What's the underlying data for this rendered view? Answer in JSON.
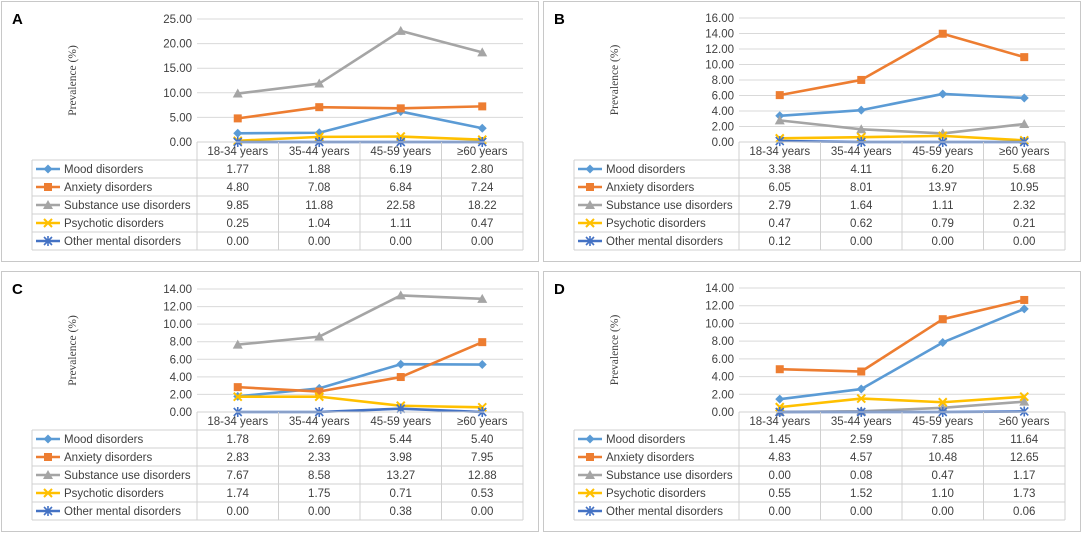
{
  "chart_data": [
    {
      "panel": "A",
      "type": "line",
      "ylabel": "Prevalence (%)",
      "ylim": [
        0,
        25
      ],
      "yticks": [
        "25.00",
        "20.00",
        "15.00",
        "10.00",
        "5.00",
        "0.00"
      ],
      "categories": [
        "18-34 years",
        "35-44  years",
        "45-59 years",
        "≥60 years"
      ],
      "series": [
        {
          "name": "Mood disorders",
          "values": [
            1.77,
            1.88,
            6.19,
            2.8
          ],
          "labels": [
            "1.77",
            "1.88",
            "6.19",
            "2.80"
          ],
          "color": "#5b9bd5",
          "marker": "diamond"
        },
        {
          "name": "Anxiety disorders",
          "values": [
            4.8,
            7.08,
            6.84,
            7.24
          ],
          "labels": [
            "4.80",
            "7.08",
            "6.84",
            "7.24"
          ],
          "color": "#ed7d31",
          "marker": "square"
        },
        {
          "name": "Substance use disorders",
          "values": [
            9.85,
            11.88,
            22.58,
            18.22
          ],
          "labels": [
            "9.85",
            "11.88",
            "22.58",
            "18.22"
          ],
          "color": "#a5a5a5",
          "marker": "triangle"
        },
        {
          "name": "Psychotic disorders",
          "values": [
            0.25,
            1.04,
            1.11,
            0.47
          ],
          "labels": [
            "0.25",
            "1.04",
            "1.11",
            "0.47"
          ],
          "color": "#ffc000",
          "marker": "x"
        },
        {
          "name": "Other mental disorders",
          "values": [
            0.0,
            0.0,
            0.0,
            0.0
          ],
          "labels": [
            "0.00",
            "0.00",
            "0.00",
            "0.00"
          ],
          "color": "#4472c4",
          "marker": "star"
        }
      ]
    },
    {
      "panel": "B",
      "type": "line",
      "ylabel": "Prevalence (%)",
      "ylim": [
        0,
        16
      ],
      "yticks": [
        "16.00",
        "14.00",
        "12.00",
        "10.00",
        "8.00",
        "6.00",
        "4.00",
        "2.00",
        "0.00"
      ],
      "categories": [
        "18-34 years",
        "35-44  years",
        "45-59 years",
        "≥60 years"
      ],
      "series": [
        {
          "name": "Mood disorders",
          "values": [
            3.38,
            4.11,
            6.2,
            5.68
          ],
          "labels": [
            "3.38",
            "4.11",
            "6.20",
            "5.68"
          ],
          "color": "#5b9bd5",
          "marker": "diamond"
        },
        {
          "name": "Anxiety disorders",
          "values": [
            6.05,
            8.01,
            13.97,
            10.95
          ],
          "labels": [
            "6.05",
            "8.01",
            "13.97",
            "10.95"
          ],
          "color": "#ed7d31",
          "marker": "square"
        },
        {
          "name": "Substance use disorders",
          "values": [
            2.79,
            1.64,
            1.11,
            2.32
          ],
          "labels": [
            "2.79",
            "1.64",
            "1.11",
            "2.32"
          ],
          "color": "#a5a5a5",
          "marker": "triangle"
        },
        {
          "name": "Psychotic disorders",
          "values": [
            0.47,
            0.62,
            0.79,
            0.21
          ],
          "labels": [
            "0.47",
            "0.62",
            "0.79",
            "0.21"
          ],
          "color": "#ffc000",
          "marker": "x"
        },
        {
          "name": "Other mental disorders",
          "values": [
            0.12,
            0.0,
            0.0,
            0.0
          ],
          "labels": [
            "0.12",
            "0.00",
            "0.00",
            "0.00"
          ],
          "color": "#4472c4",
          "marker": "star"
        }
      ]
    },
    {
      "panel": "C",
      "type": "line",
      "ylabel": "Prevalence (%)",
      "ylim": [
        0,
        14
      ],
      "yticks": [
        "14.00",
        "12.00",
        "10.00",
        "8.00",
        "6.00",
        "4.00",
        "2.00",
        "0.00"
      ],
      "categories": [
        "18-34 years",
        "35-44  years",
        "45-59 years",
        "≥60 years"
      ],
      "series": [
        {
          "name": "Mood disorders",
          "values": [
            1.78,
            2.69,
            5.44,
            5.4
          ],
          "labels": [
            "1.78",
            "2.69",
            "5.44",
            "5.40"
          ],
          "color": "#5b9bd5",
          "marker": "diamond"
        },
        {
          "name": "Anxiety disorders",
          "values": [
            2.83,
            2.33,
            3.98,
            7.95
          ],
          "labels": [
            "2.83",
            "2.33",
            "3.98",
            "7.95"
          ],
          "color": "#ed7d31",
          "marker": "square"
        },
        {
          "name": "Substance use disorders",
          "values": [
            7.67,
            8.58,
            13.27,
            12.88
          ],
          "labels": [
            "7.67",
            "8.58",
            "13.27",
            "12.88"
          ],
          "color": "#a5a5a5",
          "marker": "triangle"
        },
        {
          "name": "Psychotic disorders",
          "values": [
            1.74,
            1.75,
            0.71,
            0.53
          ],
          "labels": [
            "1.74",
            "1.75",
            "0.71",
            "0.53"
          ],
          "color": "#ffc000",
          "marker": "x"
        },
        {
          "name": "Other mental disorders",
          "values": [
            0.0,
            0.0,
            0.38,
            0.0
          ],
          "labels": [
            "0.00",
            "0.00",
            "0.38",
            "0.00"
          ],
          "color": "#4472c4",
          "marker": "star"
        }
      ]
    },
    {
      "panel": "D",
      "type": "line",
      "ylabel": "Prevalence (%)",
      "ylim": [
        0,
        14
      ],
      "yticks": [
        "14.00",
        "12.00",
        "10.00",
        "8.00",
        "6.00",
        "4.00",
        "2.00",
        "0.00"
      ],
      "categories": [
        "18-34 years",
        "35-44  years",
        "45-59 years",
        "≥60 years"
      ],
      "series": [
        {
          "name": "Mood disorders",
          "values": [
            1.45,
            2.59,
            7.85,
            11.64
          ],
          "labels": [
            "1.45",
            "2.59",
            "7.85",
            "11.64"
          ],
          "color": "#5b9bd5",
          "marker": "diamond"
        },
        {
          "name": "Anxiety disorders",
          "values": [
            4.83,
            4.57,
            10.48,
            12.65
          ],
          "labels": [
            "4.83",
            "4.57",
            "10.48",
            "12.65"
          ],
          "color": "#ed7d31",
          "marker": "square"
        },
        {
          "name": "Substance use disorders",
          "values": [
            0.0,
            0.08,
            0.47,
            1.17
          ],
          "labels": [
            "0.00",
            "0.08",
            "0.47",
            "1.17"
          ],
          "color": "#a5a5a5",
          "marker": "triangle"
        },
        {
          "name": "Psychotic disorders",
          "values": [
            0.55,
            1.52,
            1.1,
            1.73
          ],
          "labels": [
            "0.55",
            "1.52",
            "1.10",
            "1.73"
          ],
          "color": "#ffc000",
          "marker": "x"
        },
        {
          "name": "Other mental disorders",
          "values": [
            0.0,
            0.0,
            0.0,
            0.06
          ],
          "labels": [
            "0.00",
            "0.00",
            "0.00",
            "0.06"
          ],
          "color": "#4472c4",
          "marker": "star"
        }
      ]
    }
  ]
}
